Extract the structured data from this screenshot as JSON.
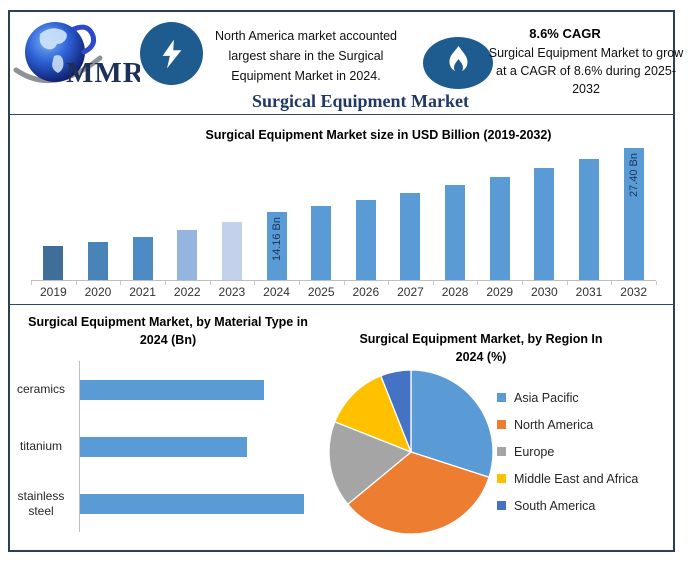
{
  "title": "Surgical Equipment Market",
  "banner": {
    "logo": {
      "text": "MMR",
      "icon": "globe-icon"
    },
    "left_callout": {
      "icon": "lightning-icon",
      "text": "North America market accounted largest share in the Surgical Equipment Market in 2024."
    },
    "right_callout": {
      "icon": "flame-icon",
      "heading": "8.6% CAGR",
      "body": "Surgical Equipment Market to grow at a CAGR of 8.6% during 2025-2032"
    }
  },
  "colors": {
    "frame_border": "#2B4055",
    "title_navy": "#1F3864",
    "icon_circle_blue": "#1E5C8F",
    "bar_blue": "#5B9BD5",
    "axis_gray": "#BFBFBF",
    "value_label_navy": "#17365D"
  },
  "chart_data": [
    {
      "type": "bar",
      "title": "Surgical Equipment Market size in USD Billion (2019-2032)",
      "xlabel": "",
      "ylabel": "",
      "unit": "USD Billion",
      "categories": [
        "2019",
        "2020",
        "2021",
        "2022",
        "2023",
        "2024",
        "2025",
        "2026",
        "2027",
        "2028",
        "2029",
        "2030",
        "2031",
        "2032"
      ],
      "values": [
        7.0,
        7.9,
        9.0,
        10.5,
        12.0,
        14.16,
        15.38,
        16.7,
        18.14,
        19.7,
        21.4,
        23.24,
        25.23,
        27.4
      ],
      "ylim": [
        0,
        28.5
      ],
      "grid": false,
      "bar_colors": [
        "#3F6E99",
        "#4A83B8",
        "#4E8BC4",
        "#93B5DE",
        "#C3D2EA",
        "#5B9BD5",
        "#5B9BD5",
        "#5B9BD5",
        "#5B9BD5",
        "#5B9BD5",
        "#5B9BD5",
        "#5B9BD5",
        "#5B9BD5",
        "#5B9BD5"
      ],
      "value_labels": {
        "2024": "14.16 Bn",
        "2032": "27.40 Bn"
      }
    },
    {
      "type": "bar",
      "orientation": "horizontal",
      "title": "Surgical Equipment Market, by Material Type in 2024 (Bn)",
      "xlabel": "",
      "ylabel": "",
      "categories": [
        "ceramics",
        "titanium",
        "stainless steel"
      ],
      "values": [
        4.5,
        4.1,
        5.5
      ],
      "xlim": [
        0,
        6.2
      ],
      "grid": false,
      "bar_color": "#5B9BD5"
    },
    {
      "type": "pie",
      "title": "Surgical Equipment Market, by Region In 2024 (%)",
      "labels": [
        "Asia Pacific",
        "North America",
        "Europe",
        "Middle East and Africa",
        "South America"
      ],
      "values": [
        30,
        34,
        17,
        13,
        6
      ],
      "colors": [
        "#5B9BD5",
        "#ED7D31",
        "#A5A5A5",
        "#FFC000",
        "#4472C4"
      ],
      "legend_position": "right",
      "start_angle_deg": 0
    }
  ]
}
